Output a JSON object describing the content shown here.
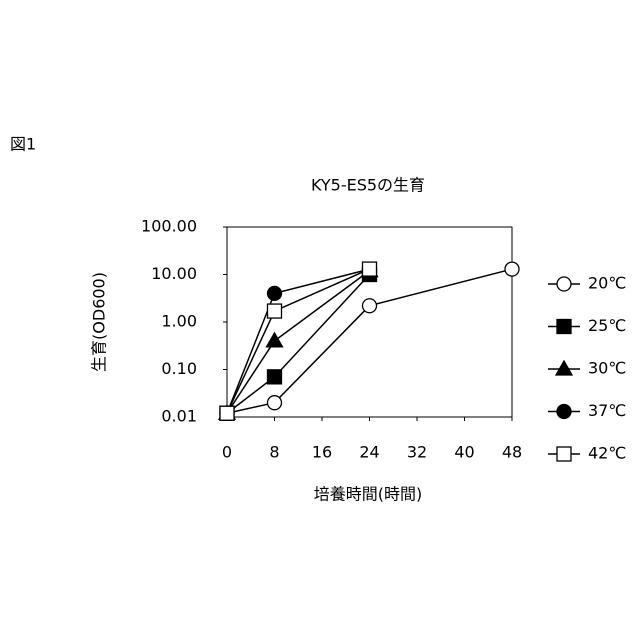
{
  "figure_label": "図1",
  "chart_data": {
    "type": "line",
    "title": "KY5-ES5の生育",
    "x_label": "培養時間(時間)",
    "y_label": "生育(OD600)",
    "xlim": [
      0,
      48
    ],
    "xticks": [
      0,
      8,
      16,
      24,
      32,
      40,
      48
    ],
    "ylim": [
      0.01,
      100
    ],
    "yscale": "log",
    "yticks": [
      0.01,
      {
        "value": 0.1,
        "label": "0.10"
      },
      {
        "value": 1,
        "label": "1.00"
      },
      {
        "value": 10,
        "label": "10.00"
      },
      {
        "value": 100,
        "label": "100.00"
      }
    ],
    "legend": "right",
    "series": [
      {
        "name": "20℃",
        "color": "#000000",
        "marker": "circle-open",
        "x": [
          0,
          8,
          24,
          48
        ],
        "values": [
          0.012,
          0.02,
          2.2,
          13
        ]
      },
      {
        "name": "25℃",
        "color": "#000000",
        "marker": "square-filled",
        "x": [
          0,
          8,
          24
        ],
        "values": [
          0.012,
          0.07,
          10
        ]
      },
      {
        "name": "30℃",
        "color": "#000000",
        "marker": "triangle-filled",
        "x": [
          0,
          8,
          24
        ],
        "values": [
          0.012,
          0.4,
          12
        ]
      },
      {
        "name": "37℃",
        "color": "#000000",
        "marker": "circle-filled",
        "x": [
          0,
          8,
          24
        ],
        "values": [
          0.012,
          4,
          13
        ]
      },
      {
        "name": "42℃",
        "color": "#000000",
        "marker": "square-open",
        "x": [
          0,
          8,
          24
        ],
        "values": [
          0.012,
          1.7,
          13
        ]
      }
    ]
  }
}
